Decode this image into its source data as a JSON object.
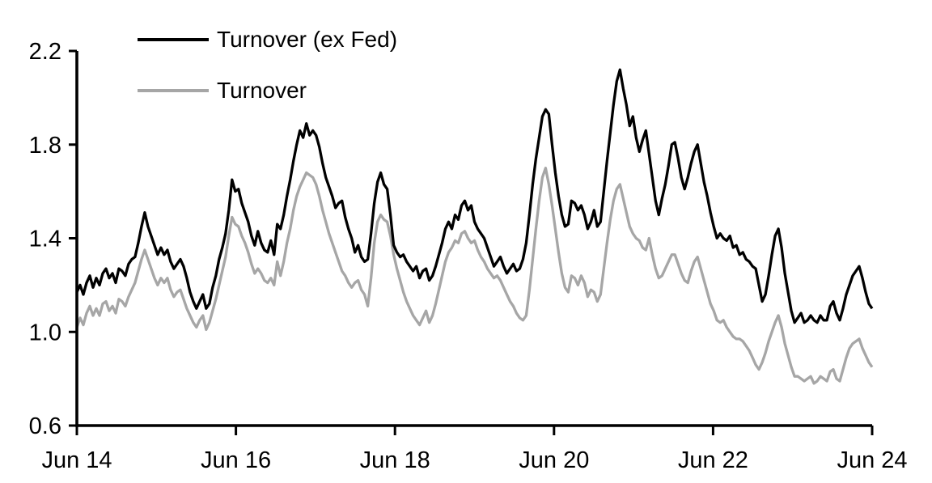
{
  "figure": {
    "background": "#ffffff",
    "axis_color": "#000000"
  },
  "legend": {
    "position": "top-left-inside",
    "items": [
      {
        "label": "Turnover (ex Fed)",
        "color": "#000000"
      },
      {
        "label": "Turnover",
        "color": "#a6a6a6"
      }
    ]
  },
  "chart_data": {
    "type": "line",
    "title": "",
    "xlabel": "",
    "ylabel": "",
    "grid": false,
    "legend_position": "top-left-inside",
    "ylim": [
      0.6,
      2.2
    ],
    "y_tick_values": [
      0.6,
      1.0,
      1.4,
      1.8,
      2.2
    ],
    "y_tick_labels": [
      "0.6",
      "1.0",
      "1.4",
      "1.8",
      "2.2"
    ],
    "x_tick_labels": [
      "Jun 14",
      "Jun 16",
      "Jun 18",
      "Jun 20",
      "Jun 22",
      "Jun 24"
    ],
    "x_range_note": "weekly-style series sampled evenly from Jun 14 to Jun 24",
    "series": [
      {
        "name": "Turnover (ex Fed)",
        "color": "#000000",
        "width": 3.3,
        "values": [
          1.17,
          1.2,
          1.16,
          1.21,
          1.24,
          1.19,
          1.23,
          1.2,
          1.25,
          1.27,
          1.23,
          1.25,
          1.21,
          1.27,
          1.26,
          1.24,
          1.29,
          1.31,
          1.32,
          1.38,
          1.45,
          1.51,
          1.45,
          1.41,
          1.37,
          1.33,
          1.36,
          1.33,
          1.35,
          1.3,
          1.27,
          1.29,
          1.31,
          1.28,
          1.23,
          1.17,
          1.13,
          1.1,
          1.13,
          1.16,
          1.1,
          1.12,
          1.19,
          1.24,
          1.31,
          1.36,
          1.42,
          1.52,
          1.65,
          1.6,
          1.61,
          1.55,
          1.51,
          1.47,
          1.41,
          1.37,
          1.43,
          1.38,
          1.35,
          1.34,
          1.39,
          1.33,
          1.46,
          1.44,
          1.5,
          1.58,
          1.65,
          1.73,
          1.8,
          1.86,
          1.83,
          1.89,
          1.84,
          1.86,
          1.84,
          1.79,
          1.72,
          1.66,
          1.62,
          1.58,
          1.53,
          1.55,
          1.56,
          1.49,
          1.44,
          1.4,
          1.34,
          1.37,
          1.32,
          1.3,
          1.31,
          1.42,
          1.55,
          1.64,
          1.68,
          1.63,
          1.61,
          1.5,
          1.37,
          1.34,
          1.32,
          1.33,
          1.3,
          1.28,
          1.26,
          1.28,
          1.23,
          1.26,
          1.27,
          1.22,
          1.24,
          1.28,
          1.33,
          1.38,
          1.44,
          1.47,
          1.44,
          1.5,
          1.48,
          1.54,
          1.56,
          1.52,
          1.54,
          1.47,
          1.44,
          1.42,
          1.4,
          1.36,
          1.32,
          1.28,
          1.3,
          1.32,
          1.28,
          1.25,
          1.27,
          1.29,
          1.26,
          1.27,
          1.31,
          1.38,
          1.5,
          1.63,
          1.74,
          1.83,
          1.92,
          1.95,
          1.93,
          1.8,
          1.68,
          1.58,
          1.5,
          1.45,
          1.46,
          1.56,
          1.55,
          1.52,
          1.54,
          1.5,
          1.44,
          1.47,
          1.52,
          1.45,
          1.47,
          1.6,
          1.73,
          1.85,
          1.97,
          2.07,
          2.12,
          2.04,
          1.97,
          1.88,
          1.92,
          1.83,
          1.77,
          1.82,
          1.86,
          1.76,
          1.66,
          1.56,
          1.5,
          1.57,
          1.63,
          1.71,
          1.8,
          1.81,
          1.74,
          1.66,
          1.61,
          1.66,
          1.72,
          1.77,
          1.8,
          1.72,
          1.64,
          1.58,
          1.51,
          1.45,
          1.4,
          1.42,
          1.4,
          1.39,
          1.41,
          1.36,
          1.37,
          1.33,
          1.34,
          1.31,
          1.3,
          1.28,
          1.27,
          1.2,
          1.13,
          1.16,
          1.24,
          1.33,
          1.41,
          1.44,
          1.36,
          1.25,
          1.17,
          1.09,
          1.04,
          1.06,
          1.08,
          1.04,
          1.05,
          1.07,
          1.05,
          1.04,
          1.07,
          1.05,
          1.05,
          1.11,
          1.13,
          1.08,
          1.05,
          1.1,
          1.16,
          1.2,
          1.24,
          1.26,
          1.28,
          1.23,
          1.17,
          1.12,
          1.1
        ]
      },
      {
        "name": "Turnover",
        "color": "#a6a6a6",
        "width": 3.3,
        "values": [
          1.02,
          1.06,
          1.03,
          1.08,
          1.11,
          1.07,
          1.1,
          1.07,
          1.12,
          1.13,
          1.09,
          1.11,
          1.08,
          1.14,
          1.13,
          1.11,
          1.15,
          1.18,
          1.21,
          1.26,
          1.31,
          1.35,
          1.31,
          1.27,
          1.23,
          1.2,
          1.23,
          1.21,
          1.23,
          1.18,
          1.15,
          1.17,
          1.18,
          1.14,
          1.1,
          1.07,
          1.04,
          1.02,
          1.05,
          1.07,
          1.01,
          1.04,
          1.09,
          1.14,
          1.2,
          1.26,
          1.32,
          1.41,
          1.49,
          1.46,
          1.45,
          1.41,
          1.38,
          1.34,
          1.29,
          1.25,
          1.27,
          1.25,
          1.22,
          1.21,
          1.23,
          1.2,
          1.3,
          1.24,
          1.3,
          1.38,
          1.44,
          1.52,
          1.58,
          1.62,
          1.65,
          1.68,
          1.67,
          1.66,
          1.63,
          1.58,
          1.52,
          1.47,
          1.42,
          1.38,
          1.34,
          1.3,
          1.26,
          1.24,
          1.21,
          1.19,
          1.21,
          1.22,
          1.18,
          1.16,
          1.11,
          1.23,
          1.38,
          1.47,
          1.5,
          1.48,
          1.47,
          1.41,
          1.33,
          1.27,
          1.22,
          1.17,
          1.13,
          1.1,
          1.07,
          1.05,
          1.03,
          1.06,
          1.09,
          1.04,
          1.07,
          1.12,
          1.18,
          1.24,
          1.3,
          1.34,
          1.36,
          1.39,
          1.38,
          1.42,
          1.43,
          1.4,
          1.38,
          1.39,
          1.35,
          1.32,
          1.3,
          1.27,
          1.25,
          1.23,
          1.24,
          1.22,
          1.19,
          1.16,
          1.13,
          1.11,
          1.08,
          1.06,
          1.05,
          1.07,
          1.18,
          1.31,
          1.44,
          1.56,
          1.66,
          1.7,
          1.63,
          1.54,
          1.44,
          1.34,
          1.25,
          1.19,
          1.17,
          1.24,
          1.23,
          1.2,
          1.24,
          1.21,
          1.15,
          1.18,
          1.17,
          1.13,
          1.16,
          1.27,
          1.38,
          1.48,
          1.56,
          1.61,
          1.63,
          1.57,
          1.51,
          1.45,
          1.42,
          1.4,
          1.39,
          1.36,
          1.35,
          1.4,
          1.33,
          1.27,
          1.23,
          1.24,
          1.27,
          1.3,
          1.33,
          1.33,
          1.29,
          1.25,
          1.22,
          1.21,
          1.26,
          1.3,
          1.32,
          1.27,
          1.22,
          1.17,
          1.12,
          1.09,
          1.05,
          1.04,
          1.05,
          1.02,
          1.0,
          0.98,
          0.97,
          0.97,
          0.96,
          0.94,
          0.92,
          0.89,
          0.86,
          0.84,
          0.87,
          0.91,
          0.96,
          1.0,
          1.04,
          1.07,
          1.02,
          0.95,
          0.9,
          0.85,
          0.81,
          0.81,
          0.8,
          0.79,
          0.8,
          0.81,
          0.78,
          0.79,
          0.81,
          0.8,
          0.79,
          0.83,
          0.84,
          0.8,
          0.79,
          0.84,
          0.89,
          0.93,
          0.95,
          0.96,
          0.97,
          0.93,
          0.9,
          0.87,
          0.85
        ]
      }
    ]
  }
}
